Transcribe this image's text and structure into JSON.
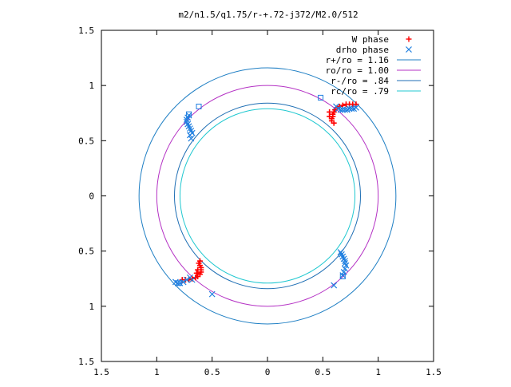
{
  "chart_data": {
    "type": "scatter",
    "title": "m2/n1.5/q1.75/r-+.72-j372/M2.0/512",
    "xlim": [
      -1.5,
      1.5
    ],
    "ylim": [
      -1.5,
      1.5
    ],
    "x_ticks": [
      {
        "value": -1.5,
        "label": "1.5"
      },
      {
        "value": -1.0,
        "label": "1"
      },
      {
        "value": -0.5,
        "label": "0.5"
      },
      {
        "value": 0.0,
        "label": "0"
      },
      {
        "value": 0.5,
        "label": "0.5"
      },
      {
        "value": 1.0,
        "label": "1"
      },
      {
        "value": 1.5,
        "label": "1.5"
      }
    ],
    "y_ticks": [
      {
        "value": 1.5,
        "label": "1.5"
      },
      {
        "value": 1.0,
        "label": "1"
      },
      {
        "value": 0.5,
        "label": "0.5"
      },
      {
        "value": 0.0,
        "label": "0"
      },
      {
        "value": -0.5,
        "label": "0.5"
      },
      {
        "value": -1.0,
        "label": "1"
      },
      {
        "value": -1.5,
        "label": "1.5"
      }
    ],
    "grid": false,
    "legend_position": "top-right",
    "circles": [
      {
        "name": "r+/ro = 1.16",
        "radius": 1.16,
        "color": "#1f7fc4"
      },
      {
        "name": "ro/ro = 1.00",
        "radius": 1.0,
        "color": "#b431c4"
      },
      {
        "name": "r-/ro = .84",
        "radius": 0.84,
        "color": "#1f6fb4"
      },
      {
        "name": "rc/ro = .79",
        "radius": 0.79,
        "color": "#20c8d0"
      }
    ],
    "series": [
      {
        "name": "W phase",
        "marker": "+",
        "color": "#ff0000",
        "points": [
          [
            0.58,
            0.68
          ],
          [
            0.58,
            0.7
          ],
          [
            0.59,
            0.72
          ],
          [
            0.59,
            0.74
          ],
          [
            0.6,
            0.76
          ],
          [
            0.61,
            0.78
          ],
          [
            0.63,
            0.8
          ],
          [
            0.65,
            0.81
          ],
          [
            0.68,
            0.82
          ],
          [
            0.71,
            0.83
          ],
          [
            0.74,
            0.83
          ],
          [
            0.77,
            0.83
          ],
          [
            0.8,
            0.83
          ],
          [
            0.6,
            0.66
          ],
          [
            0.56,
            0.72
          ],
          [
            0.56,
            0.76
          ],
          [
            -0.61,
            -0.59
          ],
          [
            -0.62,
            -0.61
          ],
          [
            -0.61,
            -0.63
          ],
          [
            -0.6,
            -0.65
          ],
          [
            -0.6,
            -0.67
          ],
          [
            -0.6,
            -0.69
          ],
          [
            -0.61,
            -0.71
          ],
          [
            -0.63,
            -0.73
          ],
          [
            -0.65,
            -0.74
          ],
          [
            -0.68,
            -0.75
          ],
          [
            -0.71,
            -0.76
          ],
          [
            -0.74,
            -0.76
          ],
          [
            -0.77,
            -0.76
          ],
          [
            -0.63,
            -0.67
          ],
          [
            -0.64,
            -0.7
          ]
        ]
      },
      {
        "name": "drho phase",
        "marker": "x",
        "color": "#1f7fe0",
        "points": [
          [
            0.66,
            0.78
          ],
          [
            0.68,
            0.78
          ],
          [
            0.7,
            0.78
          ],
          [
            0.72,
            0.78
          ],
          [
            0.74,
            0.79
          ],
          [
            0.76,
            0.79
          ],
          [
            0.78,
            0.79
          ],
          [
            0.8,
            0.8
          ],
          [
            0.64,
            0.79
          ],
          [
            0.62,
            0.81
          ],
          [
            -0.71,
            0.73
          ],
          [
            -0.72,
            0.71
          ],
          [
            -0.73,
            0.69
          ],
          [
            -0.73,
            0.67
          ],
          [
            -0.72,
            0.65
          ],
          [
            -0.71,
            0.63
          ],
          [
            -0.7,
            0.61
          ],
          [
            -0.69,
            0.59
          ],
          [
            -0.68,
            0.57
          ],
          [
            -0.7,
            0.55
          ],
          [
            -0.69,
            0.52
          ],
          [
            0.66,
            -0.51
          ],
          [
            0.67,
            -0.53
          ],
          [
            0.68,
            -0.55
          ],
          [
            0.69,
            -0.57
          ],
          [
            0.7,
            -0.59
          ],
          [
            0.7,
            -0.61
          ],
          [
            0.71,
            -0.63
          ],
          [
            0.7,
            -0.66
          ],
          [
            0.69,
            -0.69
          ],
          [
            0.68,
            -0.72
          ],
          [
            0.6,
            -0.81
          ],
          [
            -0.7,
            -0.74
          ],
          [
            -0.73,
            -0.76
          ],
          [
            -0.76,
            -0.78
          ],
          [
            -0.79,
            -0.79
          ],
          [
            -0.81,
            -0.79
          ],
          [
            -0.83,
            -0.78
          ],
          [
            -0.68,
            -0.76
          ],
          [
            -0.5,
            -0.89
          ]
        ]
      }
    ],
    "square_markers": [
      [
        0.48,
        0.89
      ],
      [
        -0.62,
        0.81
      ],
      [
        -0.71,
        0.74
      ],
      [
        0.68,
        -0.73
      ],
      [
        -0.8,
        -0.79
      ]
    ]
  }
}
